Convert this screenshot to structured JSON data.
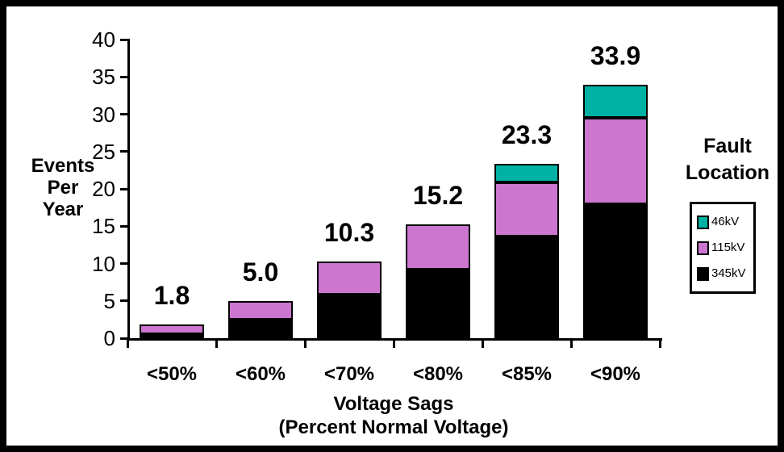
{
  "chart_data": {
    "type": "bar",
    "stacked": true,
    "categories": [
      "<50%",
      "<60%",
      "<70%",
      "<80%",
      "<85%",
      "<90%"
    ],
    "series": [
      {
        "name": "345kV",
        "color": "#000000",
        "values": [
          0.5,
          2.5,
          5.8,
          9.2,
          13.6,
          17.9
        ]
      },
      {
        "name": "115kV",
        "color": "#CC76D0",
        "values": [
          1.3,
          2.5,
          4.5,
          6.0,
          7.3,
          11.6
        ]
      },
      {
        "name": "46kV",
        "color": "#00B2A4",
        "values": [
          0,
          0,
          0,
          0,
          2.4,
          4.4
        ]
      }
    ],
    "totals": [
      "1.8",
      "5.0",
      "10.3",
      "15.2",
      "23.3",
      "33.9"
    ],
    "y_ticks": [
      0,
      5,
      10,
      15,
      20,
      25,
      30,
      35,
      40
    ],
    "ylim": [
      0,
      40
    ],
    "grid": false,
    "ylabel_lines": [
      "Events",
      "Per",
      "Year"
    ],
    "xlabel_lines": [
      "Voltage Sags",
      "(Percent Normal Voltage)"
    ],
    "legend": {
      "position": "right",
      "title_lines": [
        "Fault",
        "Location"
      ],
      "entries": [
        {
          "label": "46kV",
          "color": "#00B2A4"
        },
        {
          "label": "115kV",
          "color": "#CC76D0"
        },
        {
          "label": "345kV",
          "color": "#000000"
        }
      ]
    },
    "colors": {
      "axis": "#000000",
      "background": "#FFFFFF",
      "border": "#000000"
    }
  }
}
